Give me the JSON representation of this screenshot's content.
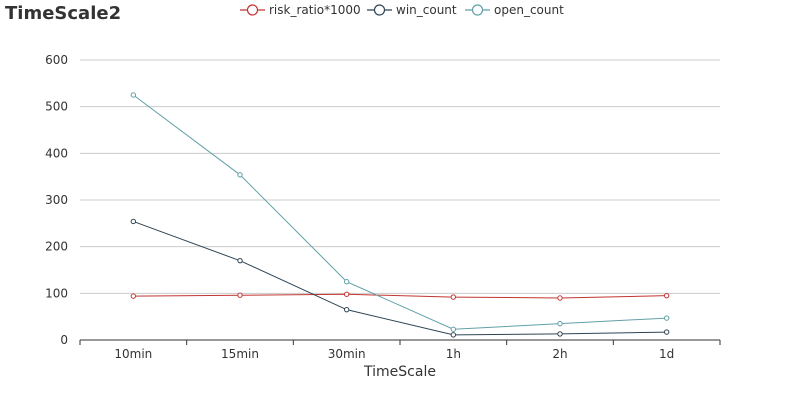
{
  "chart_data": {
    "type": "line",
    "title": "TimeScale2",
    "xlabel": "TimeScale",
    "ylabel": "",
    "categories": [
      "10min",
      "15min",
      "30min",
      "1h",
      "2h",
      "1d"
    ],
    "ylim": [
      0,
      600
    ],
    "yticks": [
      0,
      100,
      200,
      300,
      400,
      500,
      600
    ],
    "grid": true,
    "legend_position": "top-center",
    "series": [
      {
        "name": "risk_ratio*1000",
        "color": "#c23531",
        "values": [
          94,
          96,
          98,
          92,
          90,
          95
        ]
      },
      {
        "name": "win_count",
        "color": "#2f4554",
        "values": [
          254,
          170,
          65,
          11,
          13,
          17
        ]
      },
      {
        "name": "open_count",
        "color": "#61a0a8",
        "values": [
          525,
          354,
          125,
          23,
          35,
          47
        ]
      }
    ]
  }
}
